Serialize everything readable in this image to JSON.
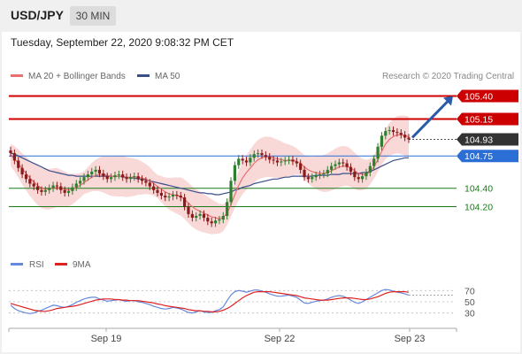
{
  "header": {
    "symbol": "USD/JPY",
    "timeframe": "30 MIN"
  },
  "timestamp": "Tuesday, September 22, 2020 9:08:32 PM CET",
  "copyright": "Research © 2020 Trading Central",
  "colors": {
    "resistance": "#cc0000",
    "pivot_box": "#2b6fd6",
    "support": "#1a7a1a",
    "price_box": "#333333",
    "bb_fill": "#f7c8c8",
    "ma20": "#e87070",
    "ma50": "#3a4e8c",
    "up_candle": "#2f7f2f",
    "down_candle": "#8b1a1a",
    "rsi": "#6688dd",
    "rsi_ma": "#dd2222",
    "arrow": "#2a5aa8"
  },
  "chart_data": [
    {
      "type": "candlestick",
      "title": "",
      "x_tick_labels": [
        "Sep 19",
        "Sep 22",
        "Sep 23"
      ],
      "ylim": [
        103.85,
        105.52
      ],
      "legend": [
        {
          "name": "MA 20 + Bollinger Bands",
          "color": "#e87070"
        },
        {
          "name": "MA 50",
          "color": "#3a4e8c"
        }
      ],
      "levels": [
        {
          "value": "105.40",
          "kind": "resistance",
          "style": "box"
        },
        {
          "value": "105.15",
          "kind": "resistance",
          "style": "box"
        },
        {
          "value": "104.93",
          "kind": "last_price",
          "style": "box"
        },
        {
          "value": "104.75",
          "kind": "pivot",
          "style": "box"
        },
        {
          "value": "104.40",
          "kind": "support",
          "style": "text"
        },
        {
          "value": "104.20",
          "kind": "support",
          "style": "text"
        }
      ],
      "arrow": {
        "from_price": 104.95,
        "to_price": 105.4,
        "direction": "up"
      },
      "close_series": [
        104.78,
        104.7,
        104.62,
        104.55,
        104.5,
        104.45,
        104.42,
        104.38,
        104.36,
        104.38,
        104.4,
        104.43,
        104.42,
        104.38,
        104.35,
        104.37,
        104.41,
        104.45,
        104.48,
        104.52,
        104.55,
        104.58,
        104.6,
        104.56,
        104.53,
        104.5,
        104.52,
        104.54,
        104.55,
        104.52,
        104.5,
        104.52,
        104.53,
        104.5,
        104.48,
        104.46,
        104.42,
        104.38,
        104.35,
        104.32,
        104.3,
        104.31,
        104.33,
        104.32,
        104.3,
        104.2,
        104.12,
        104.08,
        104.1,
        104.12,
        104.08,
        104.04,
        104.02,
        104.05,
        104.06,
        104.1,
        104.25,
        104.48,
        104.65,
        104.72,
        104.7,
        104.68,
        104.73,
        104.77,
        104.78,
        104.76,
        104.74,
        104.71,
        104.7,
        104.68,
        104.69,
        104.7,
        104.71,
        104.69,
        104.67,
        104.6,
        104.52,
        104.5,
        104.52,
        104.54,
        104.55,
        104.56,
        104.6,
        104.64,
        104.66,
        104.68,
        104.67,
        104.63,
        104.58,
        104.52,
        104.5,
        104.53,
        104.57,
        104.64,
        104.72,
        104.85,
        104.97,
        105.02,
        105.03,
        105.01,
        105.0,
        104.98,
        104.95,
        104.93
      ],
      "ma20_series": [
        104.76,
        104.72,
        104.67,
        104.61,
        104.56,
        104.51,
        104.47,
        104.43,
        104.4,
        104.39,
        104.39,
        104.4,
        104.41,
        104.4,
        104.39,
        104.38,
        104.39,
        104.41,
        104.43,
        104.46,
        104.49,
        104.52,
        104.54,
        104.55,
        104.55,
        104.54,
        104.53,
        104.53,
        104.53,
        104.53,
        104.52,
        104.52,
        104.52,
        104.52,
        104.51,
        104.5,
        104.48,
        104.45,
        104.42,
        104.39,
        104.36,
        104.34,
        104.33,
        104.32,
        104.31,
        104.28,
        104.24,
        104.2,
        104.17,
        104.15,
        104.13,
        104.11,
        104.09,
        104.08,
        104.07,
        104.08,
        104.13,
        104.22,
        104.33,
        104.43,
        104.51,
        104.57,
        104.62,
        104.67,
        104.71,
        104.73,
        104.74,
        104.74,
        104.73,
        104.72,
        104.71,
        104.7,
        104.7,
        104.7,
        104.69,
        104.67,
        104.63,
        104.6,
        104.58,
        104.57,
        104.56,
        104.56,
        104.57,
        104.59,
        104.61,
        104.63,
        104.64,
        104.64,
        104.62,
        104.59,
        104.56,
        104.55,
        104.55,
        104.58,
        104.63,
        104.71,
        104.8,
        104.88,
        104.93,
        104.96,
        104.98,
        104.98,
        104.97,
        104.96
      ],
      "ma50_series": [
        104.78,
        104.77,
        104.75,
        104.73,
        104.71,
        104.69,
        104.67,
        104.65,
        104.63,
        104.61,
        104.59,
        104.58,
        104.57,
        104.56,
        104.55,
        104.54,
        104.54,
        104.53,
        104.53,
        104.53,
        104.53,
        104.53,
        104.53,
        104.53,
        104.53,
        104.53,
        104.53,
        104.53,
        104.53,
        104.52,
        104.52,
        104.51,
        104.51,
        104.5,
        104.5,
        104.49,
        104.48,
        104.47,
        104.46,
        104.45,
        104.44,
        104.43,
        104.42,
        104.41,
        104.4,
        104.39,
        104.38,
        104.37,
        104.36,
        104.35,
        104.35,
        104.34,
        104.34,
        104.33,
        104.33,
        104.34,
        104.35,
        104.36,
        104.38,
        104.39,
        104.41,
        104.42,
        104.43,
        104.45,
        104.46,
        104.47,
        104.48,
        104.49,
        104.5,
        104.5,
        104.51,
        104.52,
        104.52,
        104.53,
        104.53,
        104.53,
        104.53,
        104.53,
        104.53,
        104.54,
        104.54,
        104.54,
        104.54,
        104.55,
        104.55,
        104.55,
        104.56,
        104.56,
        104.56,
        104.56,
        104.56,
        104.57,
        104.57,
        104.58,
        104.6,
        104.62,
        104.64,
        104.66,
        104.68,
        104.7,
        104.71,
        104.72,
        104.73,
        104.73
      ]
    },
    {
      "type": "line",
      "title": "",
      "ylim": [
        20,
        80
      ],
      "y_ticks": [
        "70",
        "50",
        "30"
      ],
      "x_tick_labels": [
        "Sep 19",
        "Sep 22",
        "Sep 23"
      ],
      "series": [
        {
          "name": "RSI",
          "values": [
            44,
            38,
            34,
            32,
            30,
            29,
            30,
            33,
            35,
            38,
            41,
            44,
            43,
            41,
            40,
            42,
            45,
            49,
            52,
            55,
            57,
            58,
            58,
            55,
            53,
            51,
            52,
            53,
            54,
            52,
            51,
            52,
            52,
            50,
            49,
            47,
            45,
            42,
            40,
            38,
            37,
            38,
            40,
            39,
            37,
            34,
            31,
            30,
            32,
            34,
            32,
            31,
            31,
            34,
            36,
            41,
            52,
            62,
            68,
            70,
            69,
            67,
            69,
            71,
            71,
            69,
            67,
            64,
            62,
            60,
            60,
            61,
            62,
            60,
            58,
            53,
            48,
            47,
            49,
            51,
            52,
            53,
            55,
            58,
            60,
            61,
            60,
            57,
            53,
            49,
            47,
            50,
            54,
            58,
            62,
            66,
            70,
            72,
            71,
            69,
            67,
            66,
            64,
            62
          ]
        },
        {
          "name": "9MA",
          "values": [
            47,
            45,
            43,
            41,
            39,
            37,
            35,
            34,
            33,
            33,
            34,
            36,
            38,
            39,
            40,
            41,
            42,
            43,
            45,
            47,
            49,
            51,
            53,
            54,
            55,
            55,
            55,
            54,
            54,
            53,
            53,
            52,
            52,
            52,
            51,
            50,
            49,
            48,
            46,
            45,
            43,
            42,
            41,
            40,
            39,
            38,
            36,
            35,
            34,
            34,
            33,
            33,
            32,
            32,
            33,
            35,
            38,
            42,
            47,
            52,
            57,
            61,
            64,
            67,
            68,
            68,
            68,
            68,
            67,
            66,
            65,
            64,
            63,
            62,
            61,
            59,
            57,
            56,
            55,
            54,
            53,
            53,
            53,
            54,
            55,
            56,
            57,
            57,
            57,
            56,
            55,
            54,
            54,
            55,
            57,
            59,
            62,
            65,
            67,
            68,
            68,
            68,
            68,
            67
          ]
        }
      ]
    }
  ]
}
